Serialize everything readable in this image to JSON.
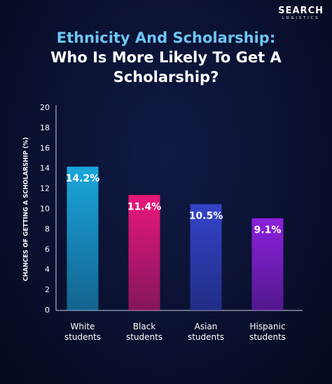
{
  "logo": {
    "name": "SEARCH",
    "tagline": "LOGISTICS"
  },
  "chart_data": {
    "type": "bar",
    "title": "Ethnicity And Scholarship:",
    "subtitle": "Who Is More Likely To Get A Scholarship?",
    "y_label": "CHANCES OF GETTING A SCHOLARSHIP (%)",
    "categories": [
      "White students",
      "Black students",
      "Asian students",
      "Hispanic students"
    ],
    "values": [
      14.2,
      11.4,
      10.5,
      9.1
    ],
    "value_labels": [
      "14.2%",
      "11.4%",
      "10.5%",
      "9.1%"
    ],
    "colors": [
      "#1aa6dc",
      "#e8177a",
      "#3343c8",
      "#8c20dc"
    ],
    "ylim": [
      0,
      20
    ],
    "yticks": [
      0,
      2,
      4,
      6,
      8,
      10,
      12,
      14,
      16,
      18,
      20
    ],
    "grid": false
  }
}
